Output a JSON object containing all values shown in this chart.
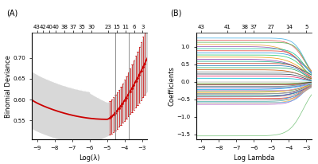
{
  "panel_A": {
    "label": "(A)",
    "top_ticks": [
      43,
      42,
      40,
      40,
      38,
      37,
      35,
      30,
      23,
      15,
      11,
      6,
      3
    ],
    "top_tick_positions": [
      -9.0,
      -8.65,
      -8.3,
      -7.95,
      -7.45,
      -6.95,
      -6.45,
      -5.9,
      -4.95,
      -4.45,
      -3.95,
      -3.45,
      -2.98
    ],
    "xlabel": "Log(λ)",
    "ylabel": "Binomial Deviance",
    "xlim": [
      -9.3,
      -2.7
    ],
    "ylim": [
      0.505,
      0.76
    ],
    "yticks": [
      0.55,
      0.6,
      0.65,
      0.7
    ],
    "xticks": [
      -9,
      -8,
      -7,
      -6,
      -5,
      -4,
      -3
    ],
    "vline1": -4.55,
    "vline2": -3.75,
    "curve_color": "#cc0000",
    "band_color": "#d8d8d8",
    "dot_start_x": -4.85,
    "dot_end_x": -2.85,
    "n_dots": 20
  },
  "panel_B": {
    "label": "(B)",
    "top_ticks": [
      43,
      41,
      38,
      37,
      27,
      14,
      5
    ],
    "top_tick_positions": [
      -9.0,
      -7.5,
      -6.5,
      -6.0,
      -5.0,
      -4.0,
      -3.0
    ],
    "xlabel": "Log Lambda",
    "ylabel": "Coefficients",
    "xlim": [
      -9.3,
      -2.7
    ],
    "ylim": [
      -1.65,
      1.4
    ],
    "yticks": [
      -1.5,
      -1.0,
      -0.5,
      0.0,
      0.5,
      1.0
    ],
    "xticks": [
      -9,
      -8,
      -7,
      -6,
      -5,
      -4,
      -3
    ],
    "n_lines": 43
  }
}
